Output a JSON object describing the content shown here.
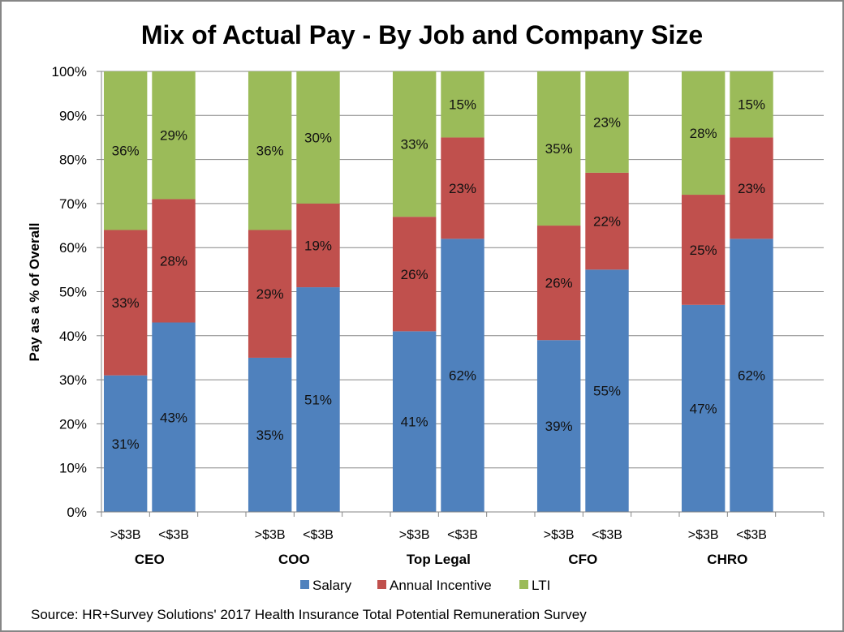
{
  "chart_data": {
    "type": "bar",
    "stacked": true,
    "title": "Mix of Actual Pay - By Job and Company Size",
    "ylabel": "Pay as a % of Overall",
    "xlabel": "",
    "ylim": [
      0,
      100
    ],
    "yticks": [
      "0%",
      "10%",
      "20%",
      "30%",
      "40%",
      "50%",
      "60%",
      "70%",
      "80%",
      "90%",
      "100%"
    ],
    "grid": true,
    "legend_position": "bottom",
    "groups": [
      {
        "name": "CEO",
        "categories": [
          ">$3B",
          "<$3B"
        ]
      },
      {
        "name": "COO",
        "categories": [
          ">$3B",
          "<$3B"
        ]
      },
      {
        "name": "Top Legal",
        "categories": [
          ">$3B",
          "<$3B"
        ]
      },
      {
        "name": "CFO",
        "categories": [
          ">$3B",
          "<$3B"
        ]
      },
      {
        "name": "CHRO",
        "categories": [
          ">$3B",
          "<$3B"
        ]
      }
    ],
    "categories": [
      "CEO >$3B",
      "CEO <$3B",
      "COO >$3B",
      "COO <$3B",
      "Top Legal >$3B",
      "Top Legal <$3B",
      "CFO >$3B",
      "CFO <$3B",
      "CHRO >$3B",
      "CHRO <$3B"
    ],
    "series": [
      {
        "name": "Salary",
        "color": "#4F81BD",
        "values": [
          31,
          43,
          35,
          51,
          41,
          62,
          39,
          55,
          47,
          62
        ]
      },
      {
        "name": "Annual Incentive",
        "color": "#C0504D",
        "values": [
          33,
          28,
          29,
          19,
          26,
          23,
          26,
          22,
          25,
          23
        ]
      },
      {
        "name": "LTI",
        "color": "#9BBB59",
        "values": [
          36,
          29,
          36,
          30,
          33,
          15,
          35,
          23,
          28,
          15
        ]
      }
    ],
    "value_suffix": "%",
    "source": "Source: HR+Survey Solutions' 2017 Health Insurance Total Potential Remuneration Survey"
  },
  "colors": {
    "gridline": "#868686",
    "axis": "#868686",
    "frame": "#868686"
  }
}
